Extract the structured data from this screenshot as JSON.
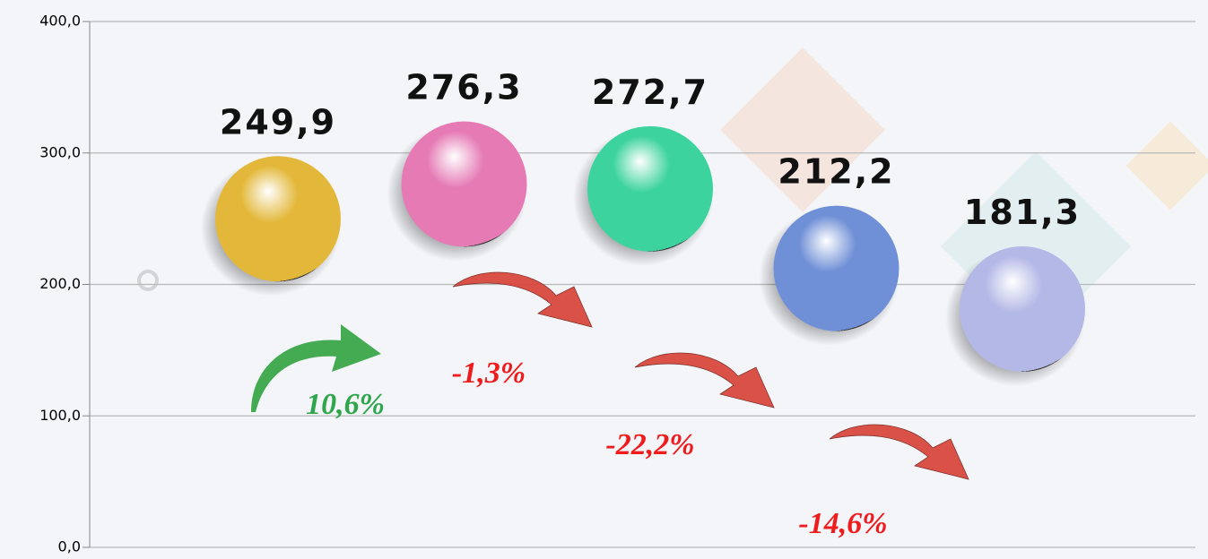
{
  "chart_data": {
    "type": "sphere",
    "categories": [
      null,
      null,
      null,
      null,
      null
    ],
    "values": [
      249.9,
      276.3,
      272.7,
      212.2,
      181.3
    ],
    "value_labels": [
      "249,9",
      "276,3",
      "272,7",
      "212,2",
      "181,3"
    ],
    "colors": [
      "#e3b83a",
      "#e57ab5",
      "#3cd39e",
      "#6f8fd6",
      "#b4b8e6"
    ],
    "ylim": [
      0,
      400
    ],
    "yticks": [
      {
        "value": 0,
        "label": "0,0"
      },
      {
        "value": 100,
        "label": "100,0"
      },
      {
        "value": 200,
        "label": "200,0"
      },
      {
        "value": 300,
        "label": "300,0"
      },
      {
        "value": 400,
        "label": "400,0"
      }
    ],
    "grid": true,
    "annotations": [
      {
        "text": "10,6%",
        "color": "#2ea64c"
      },
      {
        "text": "-1,3%",
        "color": "#ee1c1c"
      },
      {
        "text": "-22,2%",
        "color": "#ee1c1c"
      },
      {
        "text": "-14,6%",
        "color": "#ee1c1c"
      }
    ]
  }
}
